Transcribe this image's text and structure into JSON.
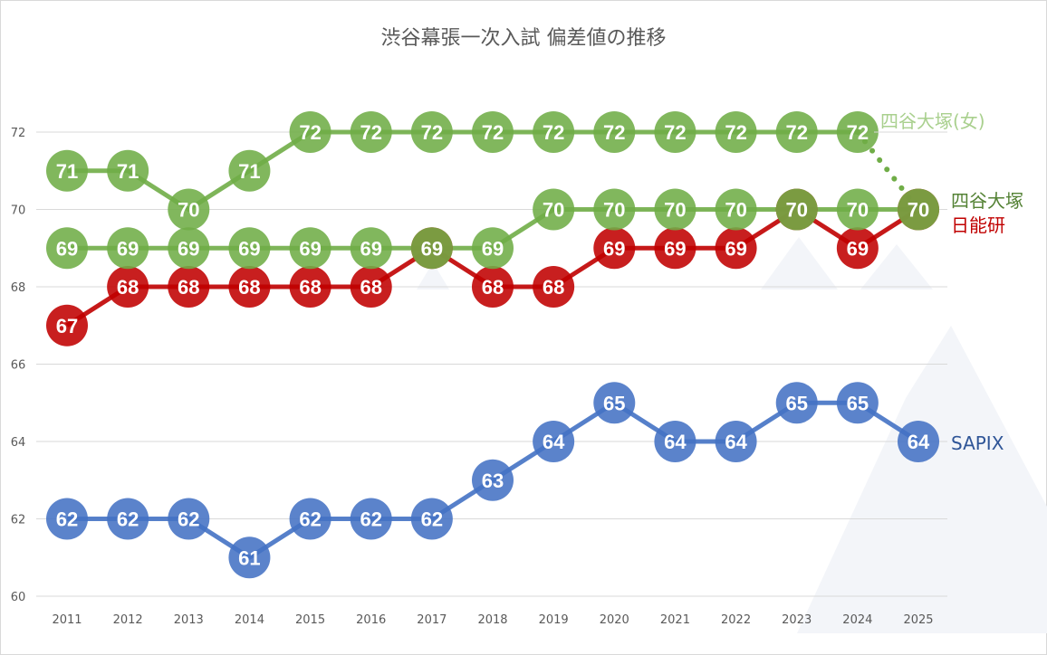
{
  "chart_data": {
    "type": "line",
    "title": "渋谷幕張一次入試 偏差値の推移",
    "xlabel": "",
    "ylabel": "",
    "categories": [
      "2011",
      "2012",
      "2013",
      "2014",
      "2015",
      "2016",
      "2017",
      "2018",
      "2019",
      "2020",
      "2021",
      "2022",
      "2023",
      "2024",
      "2025"
    ],
    "ylim": [
      60,
      72
    ],
    "yticks": [
      "60",
      "62",
      "64",
      "66",
      "68",
      "70",
      "72"
    ],
    "grid": true,
    "legend": "direct labels at right end of each series",
    "series": [
      {
        "name": "SAPIX",
        "color": "#4472c4",
        "label_color": "#2f5597",
        "values": [
          62,
          62,
          62,
          61,
          62,
          62,
          62,
          63,
          64,
          65,
          64,
          64,
          65,
          65,
          64
        ]
      },
      {
        "name": "日能研",
        "color": "#c00000",
        "label_color": "#c00000",
        "values": [
          67,
          68,
          68,
          68,
          68,
          68,
          69,
          68,
          68,
          69,
          69,
          69,
          70,
          69,
          70
        ]
      },
      {
        "name": "四谷大塚",
        "color": "#70ad47",
        "label_color": "#548235",
        "values": [
          69,
          69,
          69,
          69,
          69,
          69,
          69,
          69,
          70,
          70,
          70,
          70,
          70,
          70,
          70
        ]
      },
      {
        "name": "四谷大塚(女)",
        "color": "#70ad47",
        "label_color": "#a9d08e",
        "values": [
          71,
          71,
          70,
          71,
          72,
          72,
          72,
          72,
          72,
          72,
          72,
          72,
          72,
          72,
          70
        ],
        "dotted_last_segment": true
      }
    ]
  }
}
